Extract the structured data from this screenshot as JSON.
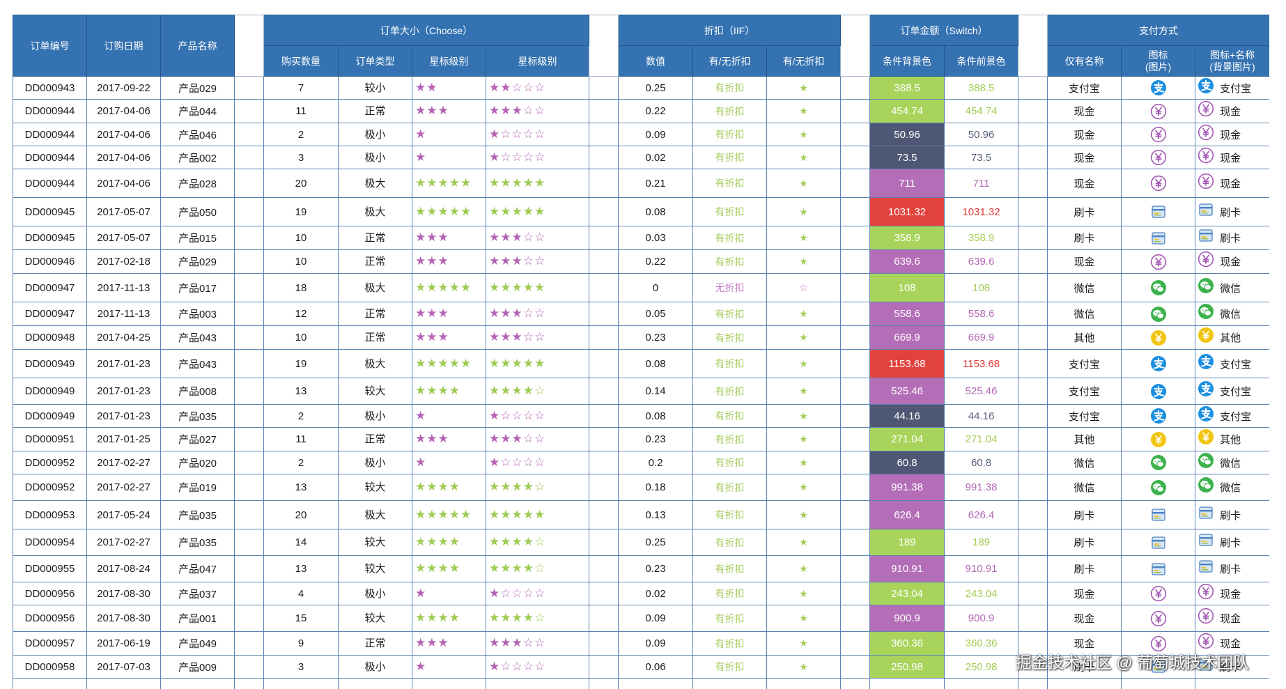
{
  "headers": {
    "order_no": "订单编号",
    "order_date": "订购日期",
    "product": "产品名称",
    "group_size": "订单大小（Choose）",
    "quantity": "购买数量",
    "order_type": "订单类型",
    "star_level_1": "星标级别",
    "star_level_2": "星标级别",
    "group_discount": "折扣（IIF）",
    "discount_value": "数值",
    "discount_flag_1": "有/无折扣",
    "discount_flag_2": "有/无折扣",
    "group_amount": "订单金额（Switch）",
    "amount_bg": "条件背景色",
    "amount_fg": "条件前景色",
    "group_payment": "支付方式",
    "payment_name": "仅有名称",
    "payment_icon_title": "图标",
    "payment_icon_note": "(图片)",
    "payment_icon_name_title": "图标+名称",
    "payment_icon_name_note": "(背景图片)"
  },
  "colors": {
    "header_bg": "#3572b1",
    "amount_tiers": {
      "dark": {
        "bg": "#4e5874",
        "fg": "#56607a"
      },
      "green": {
        "bg": "#a8d45b",
        "fg": "#a3cc55"
      },
      "purple": {
        "bg": "#b46db7",
        "fg": "#b467b5"
      },
      "red": {
        "bg": "#e2423d",
        "fg": "#df3b37"
      }
    },
    "star_low": "#b462b4",
    "star_high": "#9ecb52",
    "discount_yes": "#a6cb5c",
    "discount_no": "#c27cc4"
  },
  "payment_icons": {
    "支付宝": "alipay-icon",
    "现金": "cash-icon",
    "刷卡": "card-icon",
    "微信": "wechat-icon",
    "其他": "other-payment-icon"
  },
  "rows": [
    {
      "order_no": "DD000943",
      "order_date": "2017-09-22",
      "product": "产品029",
      "quantity": 7,
      "order_type": "较小",
      "stars": 2,
      "discount": 0.25,
      "discount_flag": "有折扣",
      "amount": 388.5,
      "payment": "支付宝"
    },
    {
      "order_no": "DD000944",
      "order_date": "2017-04-06",
      "product": "产品044",
      "quantity": 11,
      "order_type": "正常",
      "stars": 3,
      "discount": 0.22,
      "discount_flag": "有折扣",
      "amount": 454.74,
      "payment": "现金"
    },
    {
      "order_no": "DD000944",
      "order_date": "2017-04-06",
      "product": "产品046",
      "quantity": 2,
      "order_type": "极小",
      "stars": 1,
      "discount": 0.09,
      "discount_flag": "有折扣",
      "amount": 50.96,
      "payment": "现金"
    },
    {
      "order_no": "DD000944",
      "order_date": "2017-04-06",
      "product": "产品002",
      "quantity": 3,
      "order_type": "极小",
      "stars": 1,
      "discount": 0.02,
      "discount_flag": "有折扣",
      "amount": 73.5,
      "payment": "现金"
    },
    {
      "order_no": "DD000944",
      "order_date": "2017-04-06",
      "product": "产品028",
      "quantity": 20,
      "order_type": "极大",
      "stars": 5,
      "discount": 0.21,
      "discount_flag": "有折扣",
      "amount": 711,
      "payment": "现金"
    },
    {
      "order_no": "DD000945",
      "order_date": "2017-05-07",
      "product": "产品050",
      "quantity": 19,
      "order_type": "极大",
      "stars": 5,
      "discount": 0.08,
      "discount_flag": "有折扣",
      "amount": 1031.32,
      "payment": "刷卡"
    },
    {
      "order_no": "DD000945",
      "order_date": "2017-05-07",
      "product": "产品015",
      "quantity": 10,
      "order_type": "正常",
      "stars": 3,
      "discount": 0.03,
      "discount_flag": "有折扣",
      "amount": 358.9,
      "payment": "刷卡"
    },
    {
      "order_no": "DD000946",
      "order_date": "2017-02-18",
      "product": "产品029",
      "quantity": 10,
      "order_type": "正常",
      "stars": 3,
      "discount": 0.22,
      "discount_flag": "有折扣",
      "amount": 639.6,
      "payment": "现金"
    },
    {
      "order_no": "DD000947",
      "order_date": "2017-11-13",
      "product": "产品017",
      "quantity": 18,
      "order_type": "极大",
      "stars": 5,
      "discount": 0,
      "discount_flag": "无折扣",
      "amount": 108,
      "payment": "微信"
    },
    {
      "order_no": "DD000947",
      "order_date": "2017-11-13",
      "product": "产品003",
      "quantity": 12,
      "order_type": "正常",
      "stars": 3,
      "discount": 0.05,
      "discount_flag": "有折扣",
      "amount": 558.6,
      "payment": "微信"
    },
    {
      "order_no": "DD000948",
      "order_date": "2017-04-25",
      "product": "产品043",
      "quantity": 10,
      "order_type": "正常",
      "stars": 3,
      "discount": 0.23,
      "discount_flag": "有折扣",
      "amount": 669.9,
      "payment": "其他"
    },
    {
      "order_no": "DD000949",
      "order_date": "2017-01-23",
      "product": "产品043",
      "quantity": 19,
      "order_type": "极大",
      "stars": 5,
      "discount": 0.08,
      "discount_flag": "有折扣",
      "amount": 1153.68,
      "payment": "支付宝"
    },
    {
      "order_no": "DD000949",
      "order_date": "2017-01-23",
      "product": "产品008",
      "quantity": 13,
      "order_type": "较大",
      "stars": 4,
      "discount": 0.14,
      "discount_flag": "有折扣",
      "amount": 525.46,
      "payment": "支付宝"
    },
    {
      "order_no": "DD000949",
      "order_date": "2017-01-23",
      "product": "产品035",
      "quantity": 2,
      "order_type": "极小",
      "stars": 1,
      "discount": 0.08,
      "discount_flag": "有折扣",
      "amount": 44.16,
      "payment": "支付宝"
    },
    {
      "order_no": "DD000951",
      "order_date": "2017-01-25",
      "product": "产品027",
      "quantity": 11,
      "order_type": "正常",
      "stars": 3,
      "discount": 0.23,
      "discount_flag": "有折扣",
      "amount": 271.04,
      "payment": "其他"
    },
    {
      "order_no": "DD000952",
      "order_date": "2017-02-27",
      "product": "产品020",
      "quantity": 2,
      "order_type": "极小",
      "stars": 1,
      "discount": 0.2,
      "discount_flag": "有折扣",
      "amount": 60.8,
      "payment": "微信"
    },
    {
      "order_no": "DD000952",
      "order_date": "2017-02-27",
      "product": "产品019",
      "quantity": 13,
      "order_type": "较大",
      "stars": 4,
      "discount": 0.18,
      "discount_flag": "有折扣",
      "amount": 991.38,
      "payment": "微信"
    },
    {
      "order_no": "DD000953",
      "order_date": "2017-05-24",
      "product": "产品035",
      "quantity": 20,
      "order_type": "极大",
      "stars": 5,
      "discount": 0.13,
      "discount_flag": "有折扣",
      "amount": 626.4,
      "payment": "刷卡"
    },
    {
      "order_no": "DD000954",
      "order_date": "2017-02-27",
      "product": "产品035",
      "quantity": 14,
      "order_type": "较大",
      "stars": 4,
      "discount": 0.25,
      "discount_flag": "有折扣",
      "amount": 189,
      "payment": "刷卡"
    },
    {
      "order_no": "DD000955",
      "order_date": "2017-08-24",
      "product": "产品047",
      "quantity": 13,
      "order_type": "较大",
      "stars": 4,
      "discount": 0.23,
      "discount_flag": "有折扣",
      "amount": 910.91,
      "payment": "刷卡"
    },
    {
      "order_no": "DD000956",
      "order_date": "2017-08-30",
      "product": "产品037",
      "quantity": 4,
      "order_type": "极小",
      "stars": 1,
      "discount": 0.02,
      "discount_flag": "有折扣",
      "amount": 243.04,
      "payment": "现金"
    },
    {
      "order_no": "DD000956",
      "order_date": "2017-08-30",
      "product": "产品001",
      "quantity": 15,
      "order_type": "较大",
      "stars": 4,
      "discount": 0.09,
      "discount_flag": "有折扣",
      "amount": 900.9,
      "payment": "现金"
    },
    {
      "order_no": "DD000957",
      "order_date": "2017-06-19",
      "product": "产品049",
      "quantity": 9,
      "order_type": "正常",
      "stars": 3,
      "discount": 0.09,
      "discount_flag": "有折扣",
      "amount": 360.36,
      "payment": "现金"
    },
    {
      "order_no": "DD000958",
      "order_date": "2017-07-03",
      "product": "产品009",
      "quantity": 3,
      "order_type": "极小",
      "stars": 1,
      "discount": 0.06,
      "discount_flag": "有折扣",
      "amount": 250.98,
      "payment": "刷卡"
    }
  ],
  "watermark": "掘金技术社区 @ 葡萄城技术团队"
}
